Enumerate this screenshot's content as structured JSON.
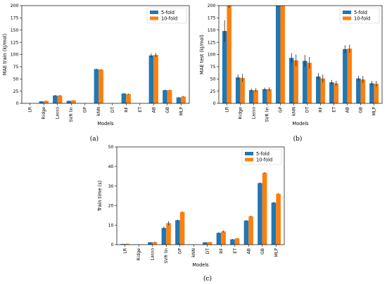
{
  "colors": {
    "five_fold": "#1f77b4",
    "ten_fold": "#ff7f0e"
  },
  "chart_data": [
    {
      "type": "bar",
      "caption": "(a)",
      "xlabel": "Models",
      "ylabel": "MAE train (kJ/mol)",
      "ylim": [
        0,
        200
      ],
      "yticks": [
        0,
        25,
        50,
        75,
        100,
        125,
        150,
        175,
        200
      ],
      "legend": "top-right",
      "categories": [
        "LR",
        "Ridge",
        "Lasso",
        "SVR lin",
        "GP",
        "kNN",
        "DT",
        "RF",
        "ET",
        "AB",
        "GB",
        "MLP"
      ],
      "series": [
        {
          "name": "5-fold",
          "values": [
            0,
            4,
            16,
            5,
            0,
            70,
            0,
            20,
            0,
            98,
            27,
            12
          ],
          "errors": [
            0,
            0.5,
            1,
            0.5,
            0,
            1,
            0,
            1,
            0,
            4,
            1,
            1
          ]
        },
        {
          "name": "10-fold",
          "values": [
            0,
            5,
            16,
            6,
            0,
            69,
            0,
            19,
            0,
            99,
            27,
            14
          ],
          "errors": [
            0,
            0.5,
            1,
            0.5,
            0,
            1,
            0,
            1,
            0,
            4,
            1,
            1
          ]
        }
      ]
    },
    {
      "type": "bar",
      "caption": "(b)",
      "xlabel": "Models",
      "ylabel": "MAE test (kJ/mol)",
      "ylim": [
        0,
        200
      ],
      "yticks": [
        0,
        25,
        50,
        75,
        100,
        125,
        150,
        175,
        200
      ],
      "legend": "top-right",
      "categories": [
        "LR",
        "Ridge",
        "Lasso",
        "SVR lin",
        "GP",
        "kNN",
        "DT",
        "RF",
        "ET",
        "AB",
        "GB",
        "MLP"
      ],
      "series": [
        {
          "name": "5-fold",
          "values": [
            148,
            53,
            27,
            29,
            200,
            93,
            87,
            55,
            43,
            111,
            51,
            41
          ],
          "errors": [
            22,
            6,
            3,
            3,
            0,
            10,
            12,
            7,
            5,
            8,
            5,
            5
          ]
        },
        {
          "name": "10-fold",
          "values": [
            200,
            52,
            27,
            29,
            200,
            88,
            83,
            51,
            41,
            112,
            49,
            40
          ],
          "errors": [
            5,
            8,
            4,
            4,
            0,
            12,
            12,
            8,
            5,
            8,
            7,
            6
          ]
        }
      ]
    },
    {
      "type": "bar",
      "caption": "(c)",
      "xlabel": "Models",
      "ylabel": "Train time (s)",
      "ylim": [
        0,
        50
      ],
      "yticks": [
        0,
        10,
        20,
        30,
        40,
        50
      ],
      "legend": "top-right",
      "categories": [
        "LR",
        "Ridge",
        "Lasso",
        "SVR lin",
        "GP",
        "kNN",
        "DT",
        "RF",
        "ET",
        "AB",
        "GB",
        "MLP"
      ],
      "series": [
        {
          "name": "5-fold",
          "values": [
            0.3,
            0.1,
            1.2,
            8.5,
            12.5,
            0.1,
            1.2,
            6.0,
            2.7,
            12.3,
            31.5,
            21.5
          ],
          "errors": [
            0.1,
            0,
            0.2,
            0.8,
            0.3,
            0,
            0.1,
            0.4,
            0.2,
            0.3,
            0.4,
            0.4
          ]
        },
        {
          "name": "10-fold",
          "values": [
            0.4,
            0.1,
            1.3,
            11.0,
            16.7,
            0.1,
            1.3,
            6.8,
            3.2,
            14.5,
            36.8,
            26.0
          ],
          "errors": [
            0.1,
            0,
            0.2,
            1.0,
            0.3,
            0,
            0.1,
            0.4,
            0.2,
            0.3,
            0.3,
            0.3
          ]
        }
      ]
    }
  ]
}
